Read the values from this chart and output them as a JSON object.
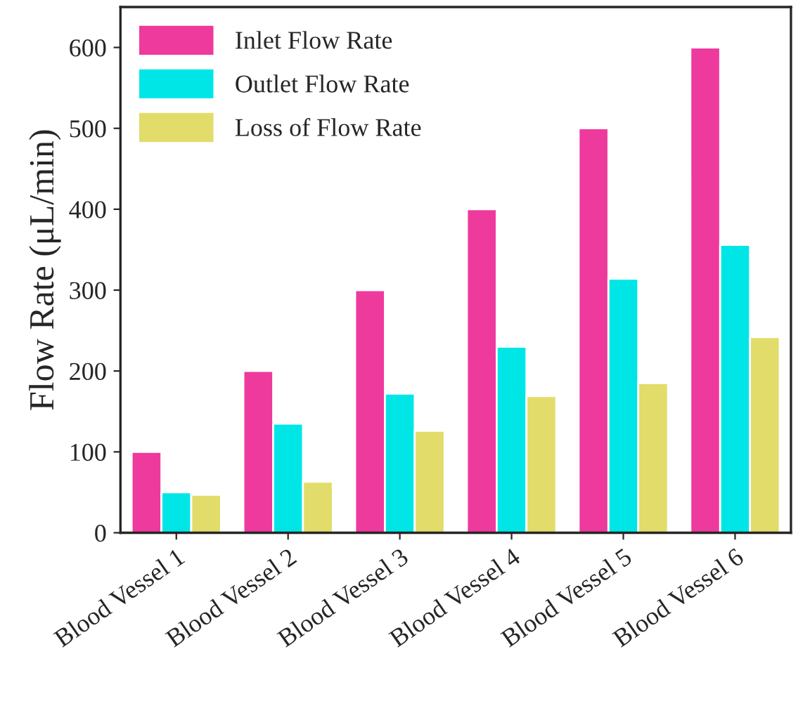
{
  "chart_data": {
    "type": "bar",
    "ylabel": "Flow Rate (μL/min)",
    "categories": [
      "Blood Vessel 1",
      "Blood Vessel 2",
      "Blood Vessel 3",
      "Blood Vessel 4",
      "Blood Vessel 5",
      "Blood Vessel 6"
    ],
    "series": [
      {
        "name": "Inlet Flow Rate",
        "color": "#ee3a9c",
        "values": [
          100,
          200,
          300,
          400,
          500,
          600
        ]
      },
      {
        "name": "Outlet Flow Rate",
        "color": "#00e6e6",
        "values": [
          50,
          135,
          172,
          230,
          314,
          356
        ]
      },
      {
        "name": "Loss of Flow Rate",
        "color": "#e2dc6a",
        "values": [
          47,
          63,
          126,
          169,
          185,
          242
        ]
      }
    ],
    "ylim": [
      0,
      650
    ],
    "yticks": [
      0,
      100,
      200,
      300,
      400,
      500,
      600
    ],
    "grid": false,
    "legend": "top left"
  }
}
